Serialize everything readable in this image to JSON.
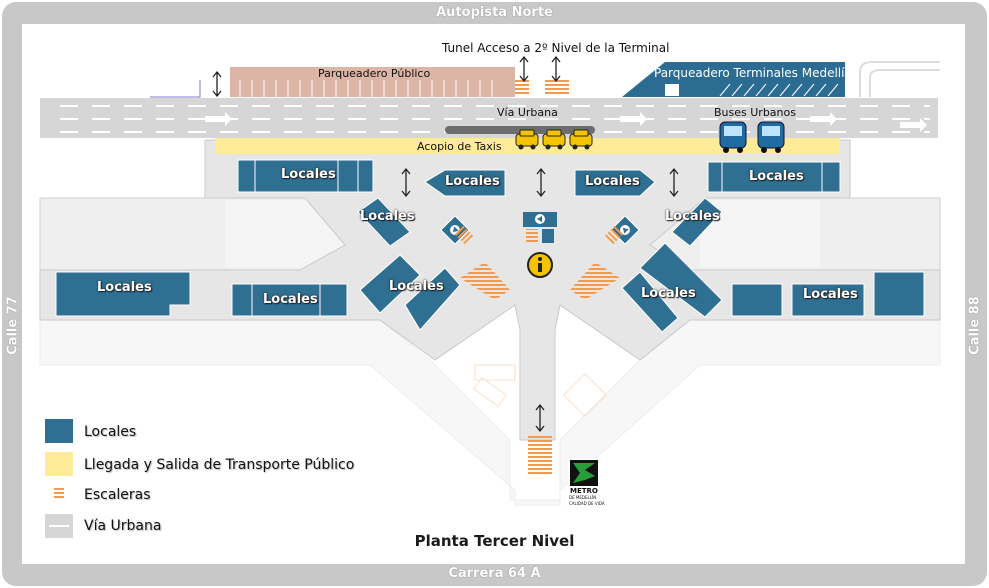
{
  "roads": {
    "top": "Autopista Norte",
    "bottom": "Carrera 64 A",
    "left": "Calle 77",
    "right": "Calle 88"
  },
  "labels": {
    "tunel": "Tunel Acceso a 2º Nivel de la Terminal",
    "parqueadero_publico": "Parqueadero Público",
    "parqueadero_terminales": "Parqueadero Terminales Medellín",
    "via_urbana": "Vía Urbana",
    "buses_urbanos": "Buses Urbanos",
    "acopio_taxis": "Acopio de Taxis",
    "locales": "Locales"
  },
  "metro": {
    "line1": "METRO",
    "line2": "DE MEDELLÍN",
    "line3": "CALIDAD DE VIDA"
  },
  "legend": [
    {
      "label": "Locales",
      "color": "#2f6f91"
    },
    {
      "label": "Llegada y Salida de Transporte Público",
      "color": "#fdeb98"
    },
    {
      "label": "Escaleras",
      "color": "#f39a4c"
    },
    {
      "label": "Vía Urbana",
      "color": "#d8d8d8"
    }
  ],
  "caption": "Planta Tercer Nivel",
  "colors": {
    "frame": "#c9c9c9",
    "floor": "#e6e6e6",
    "locales": "#2f6f91",
    "transport": "#fdeb98",
    "stairs": "#f39a4c",
    "road": "#d6d6d6",
    "parking_public": "#dcb5a6",
    "parking_terminal": "#2c6c92",
    "info": "#f5c400"
  }
}
